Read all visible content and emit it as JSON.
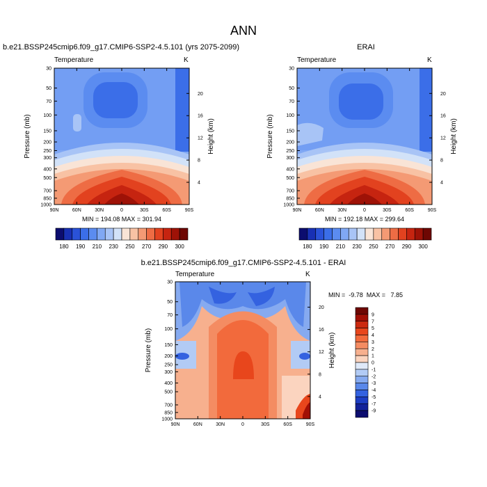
{
  "page": {
    "title": "ANN"
  },
  "panels": [
    {
      "title": "b.e21.BSSP245cmip6.f09_g17.CMIP6-SSP2-4.5.101 (yrs 2075-2099)",
      "left_label": "Temperature",
      "right_label": "K",
      "minmax": "MIN = 194.08  MAX = 301.94"
    },
    {
      "title": "ERAI",
      "left_label": "Temperature",
      "right_label": "K",
      "minmax": "MIN = 192.18  MAX = 299.64"
    },
    {
      "title": "b.e21.BSSP245cmip6.f09_g17.CMIP6-SSP2-4.5.101 - ERAI",
      "left_label": "Temperature",
      "right_label": "K",
      "minmax": "MIN =  -9.78  MAX =   7.85"
    }
  ],
  "colorbars": {
    "abs_labels": [
      "180",
      "190",
      "210",
      "230",
      "250",
      "270",
      "290",
      "300"
    ],
    "diff_labels": [
      "9",
      "7",
      "5",
      "4",
      "3",
      "2",
      "1",
      "0",
      "-1",
      "-2",
      "-3",
      "-4",
      "-5",
      "-7",
      "-9"
    ],
    "abs_colors": [
      "#0c0d6f",
      "#1830b4",
      "#2a52d8",
      "#3b6ee8",
      "#5b8cf0",
      "#80a8f4",
      "#a8c4f6",
      "#d2e2f8",
      "#f9e4d6",
      "#f8c2a4",
      "#f49a74",
      "#ee6c44",
      "#e2421f",
      "#c62410",
      "#9e1207",
      "#6e0703"
    ],
    "diff_colors": [
      "#6e0703",
      "#a10f05",
      "#cc2a10",
      "#e8461c",
      "#f26a3c",
      "#f48c62",
      "#f7b08e",
      "#fbd4bf",
      "#dfe9f9",
      "#b2cbf5",
      "#86aaf0",
      "#5a88ea",
      "#3462e0",
      "#1d3ec4",
      "#13229a",
      "#0c0d6f"
    ]
  },
  "axes": {
    "ylabel": "Pressure (mb)",
    "y2label": "Height (km)",
    "pressure_ticks": [
      "30",
      "50",
      "70",
      "100",
      "150",
      "200",
      "250",
      "300",
      "400",
      "500",
      "700",
      "850",
      "1000"
    ],
    "height_ticks": [
      "20",
      "16",
      "12",
      "8",
      "4"
    ],
    "lat_ticks": [
      "90N",
      "60N",
      "30N",
      "0",
      "30S",
      "60S",
      "90S"
    ]
  },
  "chart_data": [
    {
      "type": "heatmap",
      "title": "b.e21.BSSP245cmip6.f09_g17.CMIP6-SSP2-4.5.101 (yrs 2075-2099)",
      "variable": "Temperature",
      "units": "K",
      "xlabel": "",
      "ylabel": "Pressure (mb)",
      "y2label": "Height (km)",
      "x_ticks": [
        "90N",
        "60N",
        "30N",
        "0",
        "30S",
        "60S",
        "90S"
      ],
      "y_ticks_pressure": [
        30,
        50,
        70,
        100,
        150,
        200,
        250,
        300,
        400,
        500,
        700,
        850,
        1000
      ],
      "y_ticks_height_km": [
        20,
        16,
        12,
        8,
        4
      ],
      "levels": [
        180,
        190,
        210,
        230,
        250,
        270,
        290,
        300
      ],
      "min": 194.08,
      "max": 301.94
    },
    {
      "type": "heatmap",
      "title": "ERAI",
      "variable": "Temperature",
      "units": "K",
      "xlabel": "",
      "ylabel": "Pressure (mb)",
      "y2label": "Height (km)",
      "x_ticks": [
        "90N",
        "60N",
        "30N",
        "0",
        "30S",
        "60S",
        "90S"
      ],
      "y_ticks_pressure": [
        30,
        50,
        70,
        100,
        150,
        200,
        250,
        300,
        400,
        500,
        700,
        850,
        1000
      ],
      "y_ticks_height_km": [
        20,
        16,
        12,
        8,
        4
      ],
      "levels": [
        180,
        190,
        210,
        230,
        250,
        270,
        290,
        300
      ],
      "min": 192.18,
      "max": 299.64
    },
    {
      "type": "heatmap",
      "title": "b.e21.BSSP245cmip6.f09_g17.CMIP6-SSP2-4.5.101 - ERAI",
      "variable": "Temperature",
      "units": "K",
      "xlabel": "",
      "ylabel": "Pressure (mb)",
      "y2label": "Height (km)",
      "x_ticks": [
        "90N",
        "60N",
        "30N",
        "0",
        "30S",
        "60S",
        "90S"
      ],
      "y_ticks_pressure": [
        30,
        50,
        70,
        100,
        150,
        200,
        250,
        300,
        400,
        500,
        700,
        850,
        1000
      ],
      "y_ticks_height_km": [
        20,
        16,
        12,
        8,
        4
      ],
      "levels": [
        9,
        7,
        5,
        4,
        3,
        2,
        1,
        0,
        -1,
        -2,
        -3,
        -4,
        -5,
        -7,
        -9
      ],
      "min": -9.78,
      "max": 7.85
    }
  ]
}
